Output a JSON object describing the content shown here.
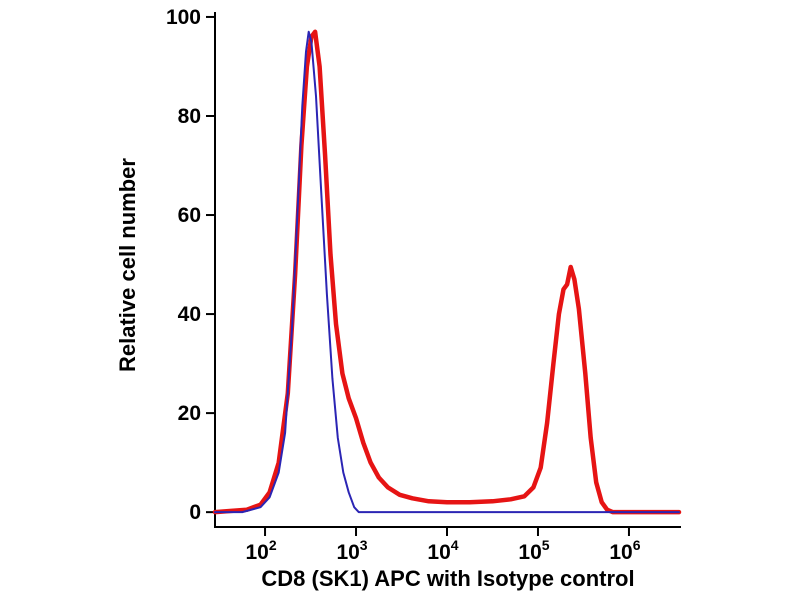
{
  "chart_data": {
    "type": "line",
    "title": "",
    "subtitle": "",
    "xlabel": "CD8 (SK1) APC with Isotype control",
    "ylabel": "Relative cell number",
    "x_scale": "log10",
    "xlim_log10": [
      1.45,
      6.55
    ],
    "ylim": [
      -3,
      101
    ],
    "yticks": [
      0,
      20,
      40,
      60,
      80,
      100
    ],
    "xticks": [
      {
        "log10": 2,
        "base": "10",
        "exp": "2"
      },
      {
        "log10": 3,
        "base": "10",
        "exp": "3"
      },
      {
        "log10": 4,
        "base": "10",
        "exp": "4"
      },
      {
        "log10": 5,
        "base": "10",
        "exp": "5"
      },
      {
        "log10": 6,
        "base": "10",
        "exp": "6"
      }
    ],
    "grid": false,
    "legend_position": "none",
    "axis_color": "#000000",
    "series": [
      {
        "name": "CD8 (SK1) APC",
        "color": "#e61414",
        "width": 4.5,
        "points_log10x_y": [
          [
            1.45,
            0
          ],
          [
            1.8,
            0.5
          ],
          [
            1.95,
            1.5
          ],
          [
            2.05,
            4
          ],
          [
            2.15,
            10
          ],
          [
            2.25,
            24
          ],
          [
            2.33,
            48
          ],
          [
            2.4,
            74
          ],
          [
            2.46,
            90
          ],
          [
            2.51,
            96
          ],
          [
            2.55,
            97
          ],
          [
            2.6,
            90
          ],
          [
            2.66,
            72
          ],
          [
            2.72,
            52
          ],
          [
            2.78,
            38
          ],
          [
            2.85,
            28
          ],
          [
            2.92,
            23
          ],
          [
            3.0,
            19
          ],
          [
            3.08,
            14
          ],
          [
            3.16,
            10
          ],
          [
            3.25,
            7
          ],
          [
            3.35,
            5
          ],
          [
            3.48,
            3.5
          ],
          [
            3.62,
            2.8
          ],
          [
            3.8,
            2.2
          ],
          [
            4.0,
            2
          ],
          [
            4.25,
            2
          ],
          [
            4.5,
            2.2
          ],
          [
            4.7,
            2.6
          ],
          [
            4.85,
            3.2
          ],
          [
            4.95,
            5
          ],
          [
            5.03,
            9
          ],
          [
            5.1,
            18
          ],
          [
            5.17,
            30
          ],
          [
            5.23,
            40
          ],
          [
            5.28,
            45
          ],
          [
            5.32,
            46
          ],
          [
            5.36,
            49.5
          ],
          [
            5.4,
            47
          ],
          [
            5.45,
            41
          ],
          [
            5.52,
            28
          ],
          [
            5.58,
            15
          ],
          [
            5.64,
            6
          ],
          [
            5.7,
            2
          ],
          [
            5.76,
            0.5
          ],
          [
            5.82,
            0
          ],
          [
            6.55,
            0
          ]
        ]
      },
      {
        "name": "Isotype control",
        "color": "#2b25b4",
        "width": 2,
        "points_log10x_y": [
          [
            1.45,
            0
          ],
          [
            1.75,
            0
          ],
          [
            1.95,
            1
          ],
          [
            2.05,
            3
          ],
          [
            2.15,
            8
          ],
          [
            2.22,
            16
          ],
          [
            2.3,
            38
          ],
          [
            2.36,
            62
          ],
          [
            2.41,
            82
          ],
          [
            2.45,
            93
          ],
          [
            2.48,
            97
          ],
          [
            2.51,
            95
          ],
          [
            2.56,
            84
          ],
          [
            2.62,
            64
          ],
          [
            2.68,
            44
          ],
          [
            2.74,
            27
          ],
          [
            2.8,
            15
          ],
          [
            2.86,
            8
          ],
          [
            2.92,
            4
          ],
          [
            2.98,
            1
          ],
          [
            3.03,
            0
          ],
          [
            6.55,
            0
          ]
        ]
      }
    ]
  }
}
